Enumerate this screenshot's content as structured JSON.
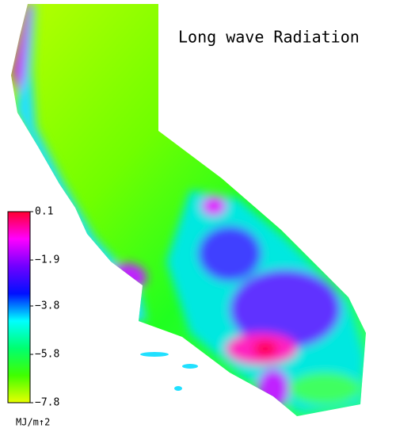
{
  "map": {
    "title": "Long wave Radiation",
    "colorbar": {
      "lim": [
        -7.8,
        0.1
      ],
      "ticks": [
        0.1,
        {
          "value": -1.9,
          "label": "−1.9"
        },
        {
          "value": -3.8,
          "label": "−3.8"
        },
        {
          "value": -5.8,
          "label": "−5.8"
        },
        {
          "value": -7.8,
          "label": "−7.8"
        }
      ],
      "colors": [
        "#ff0030",
        "#ff00ff",
        "#7000ff",
        "#0010ff",
        "#00ffff",
        "#00ff70",
        "#40ff00",
        "#e8ff00"
      ],
      "unit": "MJ/m↑2"
    }
  }
}
